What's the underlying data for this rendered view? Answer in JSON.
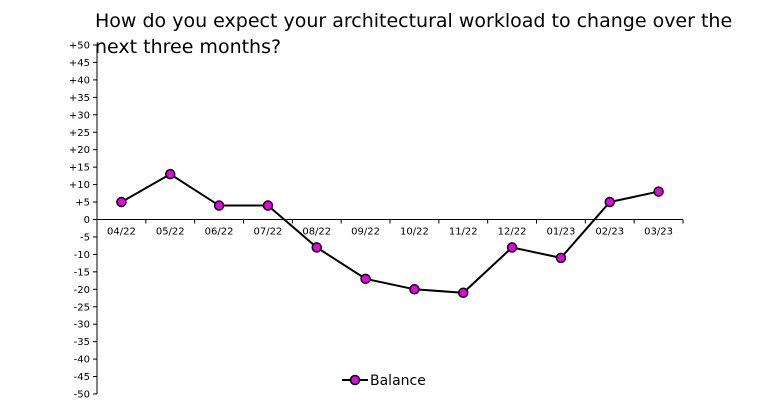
{
  "chart_data": {
    "type": "line",
    "title": "How do you expect your architectural workload to change over the next three months?",
    "categories": [
      "04/22",
      "05/22",
      "06/22",
      "07/22",
      "08/22",
      "09/22",
      "10/22",
      "11/22",
      "12/22",
      "01/23",
      "02/23",
      "03/23"
    ],
    "series": [
      {
        "name": "Balance",
        "values": [
          5,
          13,
          4,
          4,
          -8,
          -17,
          -20,
          -21,
          -8,
          -11,
          5,
          8
        ]
      }
    ],
    "ylim": [
      -50,
      50
    ],
    "ytick_step": 5,
    "ytick_labels": [
      "+50",
      "+45",
      "+40",
      "+35",
      "+30",
      "+25",
      "+20",
      "+15",
      "+10",
      "+5",
      "0",
      "-5",
      "-10",
      "-15",
      "-20",
      "-25",
      "-30",
      "-35",
      "-40",
      "-45",
      "-50"
    ],
    "grid": false,
    "legend_position": "bottom-center",
    "line_color": "#000000",
    "marker_color": "#e800e8"
  }
}
